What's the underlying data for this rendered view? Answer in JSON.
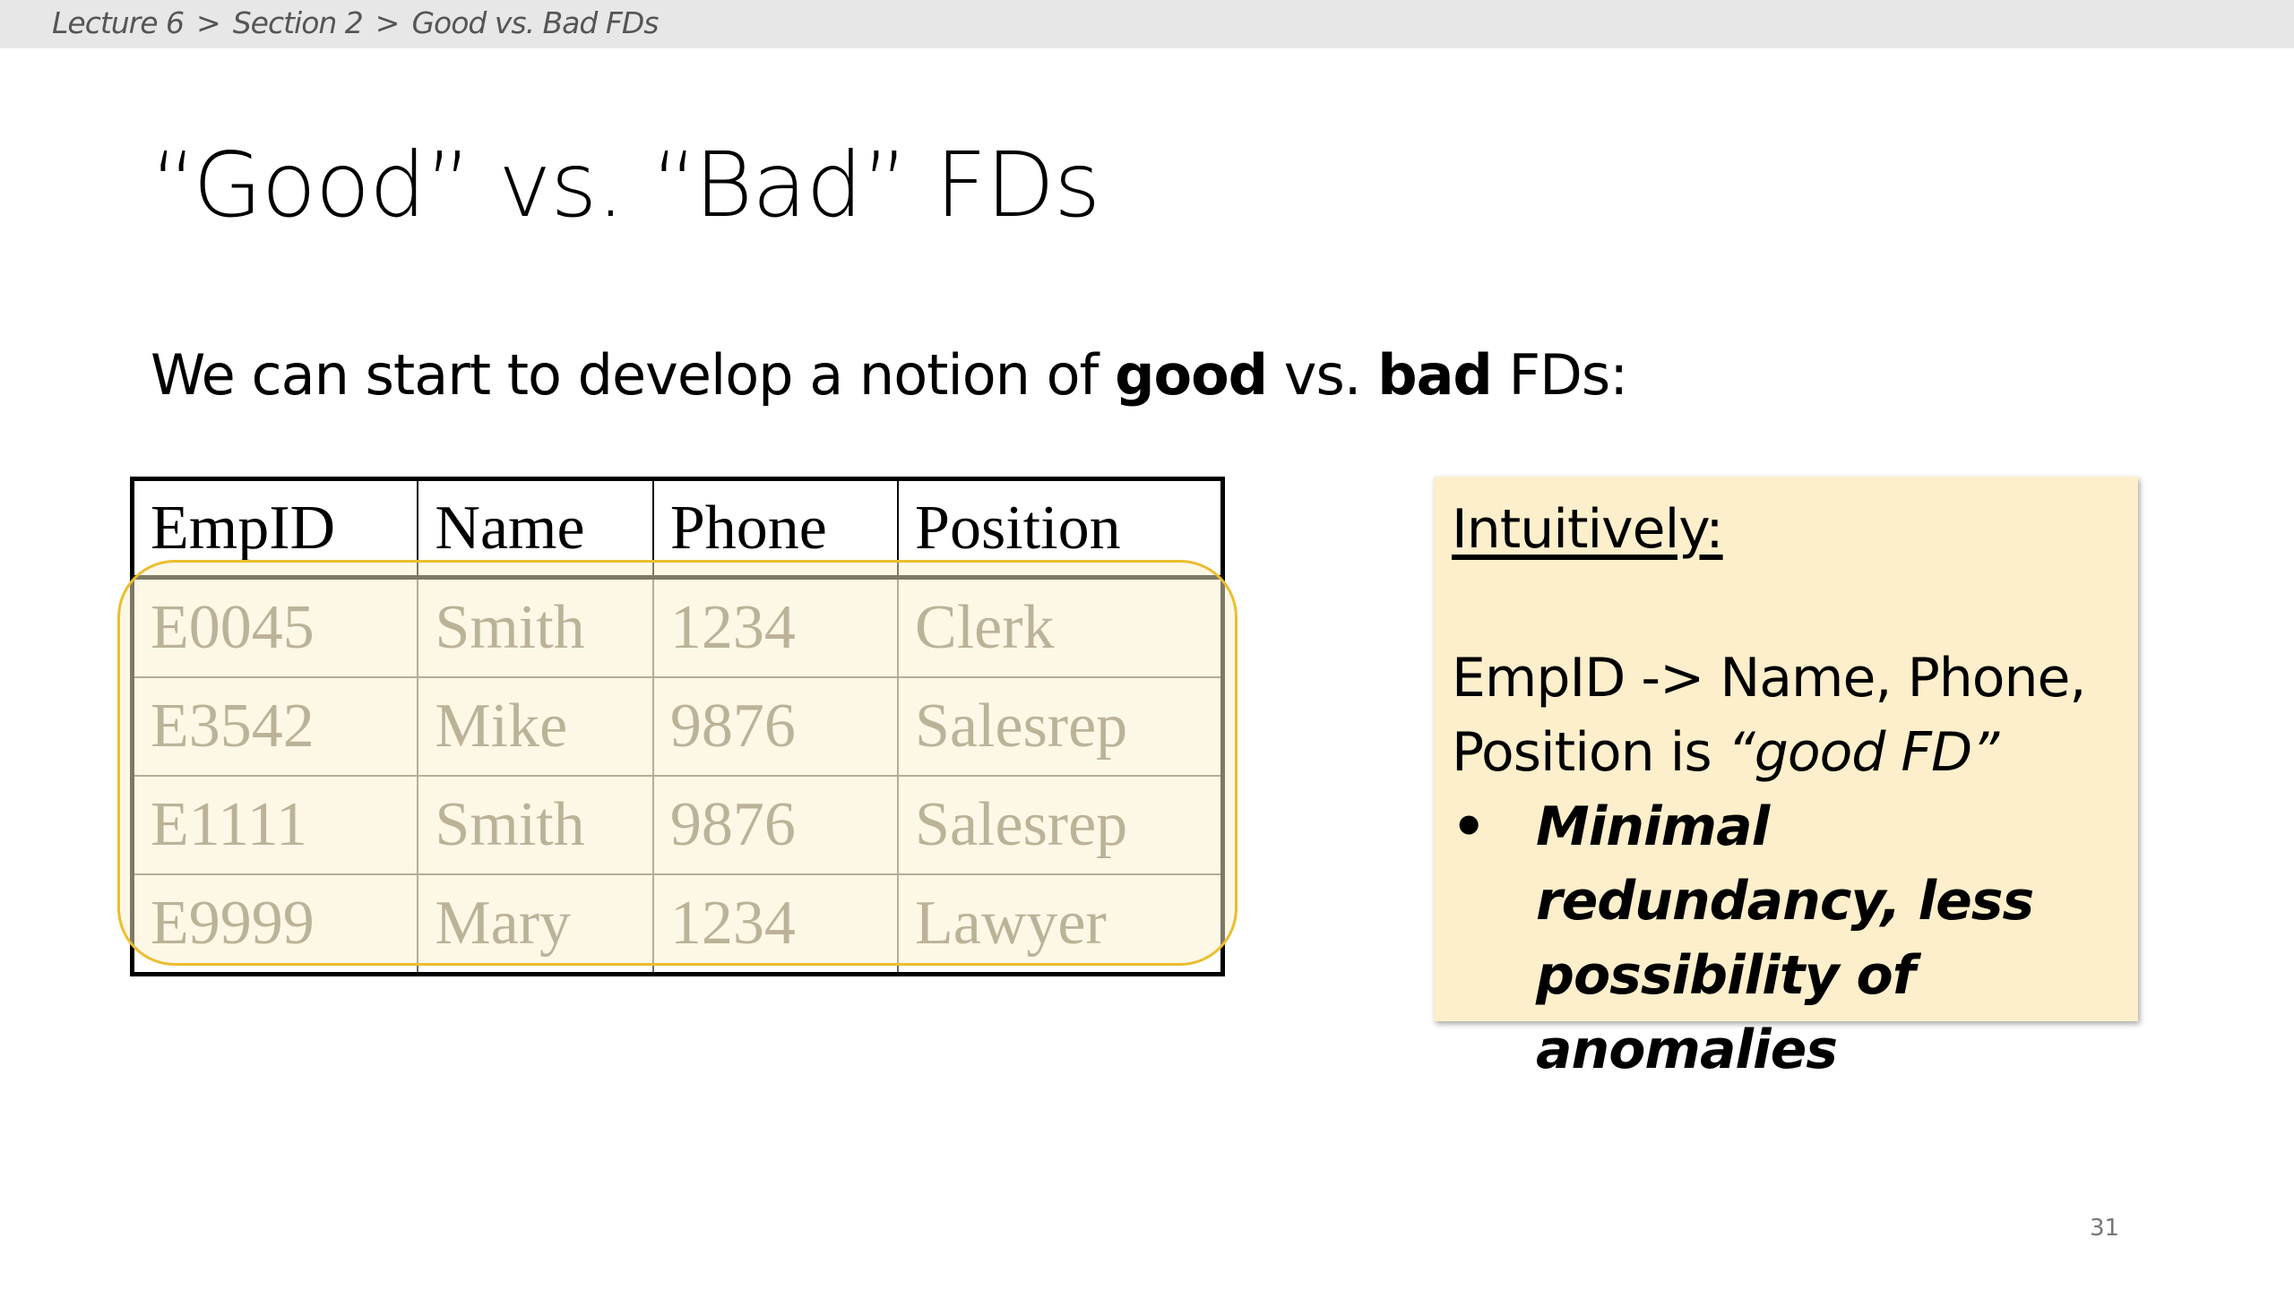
{
  "breadcrumb": [
    "Lecture 6",
    "Section 2",
    "Good vs. Bad FDs"
  ],
  "breadcrumb_separator": ">",
  "title": "“Good” vs. “Bad” FDs",
  "intro": {
    "before": "We can start to develop a notion of ",
    "good": "good",
    "middle": " vs. ",
    "bad": "bad",
    "after": " FDs:"
  },
  "table": {
    "headers": [
      "EmpID",
      "Name",
      "Phone",
      "Position"
    ],
    "rows": [
      [
        "E0045",
        "Smith",
        "1234",
        "Clerk"
      ],
      [
        "E3542",
        "Mike",
        "9876",
        "Salesrep"
      ],
      [
        "E1111",
        "Smith",
        "9876",
        "Salesrep"
      ],
      [
        "E9999",
        "Mary",
        "1234",
        "Lawyer"
      ]
    ]
  },
  "note": {
    "heading": "Intuitively:",
    "line1": "EmpID -> Name, Phone,",
    "line2_plain": "Position is ",
    "line2_italic": "“good FD”",
    "bullet": "•",
    "bullet_text": "Minimal redundancy, less possibility of anomalies"
  },
  "page_number": "31",
  "colors": {
    "highlight_outline": "#ecbd2e",
    "note_background": "#fdefcb",
    "breadcrumb_bar": "#e7e7e7"
  }
}
